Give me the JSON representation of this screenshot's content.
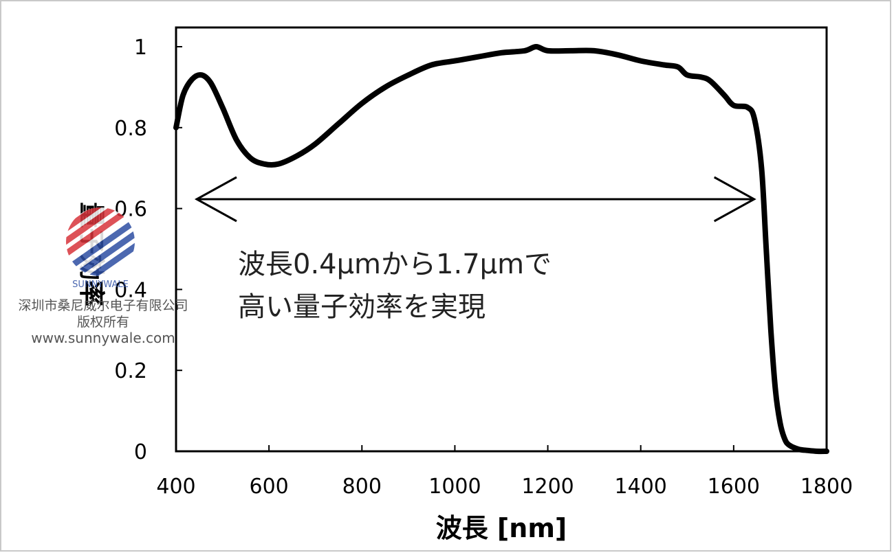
{
  "chart_data": {
    "type": "line",
    "xlabel": "波長 [nm]",
    "ylabel": "量子効率",
    "xlim": [
      400,
      1800
    ],
    "ylim": [
      0,
      1.05
    ],
    "x_ticks": [
      "400",
      "600",
      "800",
      "1000",
      "1200",
      "1400",
      "1600",
      "1800"
    ],
    "y_ticks": [
      "0",
      "0.2",
      "0.4",
      "0.6",
      "0.8",
      "1"
    ],
    "series": [
      {
        "color": "#000000",
        "x": [
          400,
          415,
          435,
          455,
          475,
          500,
          530,
          560,
          590,
          620,
          660,
          700,
          750,
          800,
          850,
          900,
          950,
          1000,
          1050,
          1100,
          1150,
          1175,
          1200,
          1250,
          1300,
          1350,
          1400,
          1450,
          1480,
          1500,
          1530,
          1550,
          1580,
          1600,
          1630,
          1645,
          1660,
          1670,
          1680,
          1690,
          1700,
          1710,
          1720,
          1740,
          1760,
          1780,
          1800
        ],
        "y": [
          0.8,
          0.88,
          0.92,
          0.93,
          0.91,
          0.85,
          0.77,
          0.725,
          0.71,
          0.71,
          0.73,
          0.76,
          0.81,
          0.86,
          0.9,
          0.93,
          0.955,
          0.965,
          0.975,
          0.985,
          0.99,
          1.0,
          0.99,
          0.99,
          0.99,
          0.98,
          0.965,
          0.955,
          0.95,
          0.93,
          0.925,
          0.915,
          0.88,
          0.855,
          0.85,
          0.82,
          0.7,
          0.5,
          0.3,
          0.15,
          0.07,
          0.03,
          0.015,
          0.005,
          0.002,
          0.0,
          0.0
        ]
      }
    ],
    "annotations": {
      "arrow_range_nm": [
        400,
        1650
      ],
      "text_line1": "波長0.4μmから1.7μmで",
      "text_line2": "高い量子効率を実現"
    },
    "grid": false
  },
  "watermark": {
    "brand": "SUNNYWALE",
    "company": "深圳市桑尼威尔电子有限公司",
    "rights": "版权所有",
    "url": "www.sunnywale.com",
    "colors": {
      "red": "#d8343b",
      "blue": "#2d4ea3"
    }
  }
}
